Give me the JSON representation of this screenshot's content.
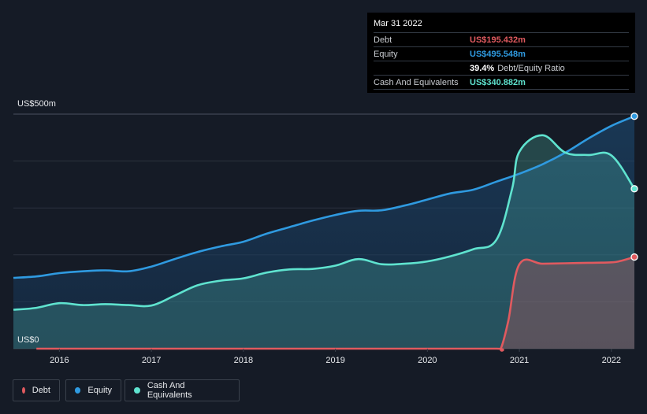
{
  "tooltip": {
    "date": "Mar 31 2022",
    "rows": [
      {
        "label": "Debt",
        "value": "US$195.432m",
        "color": "#e05a5f"
      },
      {
        "label": "Equity",
        "value": "US$495.548m",
        "color": "#2f9ae0"
      }
    ],
    "ratio_value": "39.4%",
    "ratio_label": "Debt/Equity Ratio",
    "cash": {
      "label": "Cash And Equivalents",
      "value": "US$340.882m",
      "color": "#5fe3cf"
    }
  },
  "legend": [
    {
      "label": "Debt",
      "color": "#e05a5f"
    },
    {
      "label": "Equity",
      "color": "#2f9ae0"
    },
    {
      "label": "Cash And Equivalents",
      "color": "#5fe3cf"
    }
  ],
  "chart_data": {
    "type": "area",
    "y_top_label": "US$500m",
    "y_bottom_label": "US$0",
    "ylim": [
      0,
      500
    ],
    "xlim": [
      2015.5,
      2022.25
    ],
    "x_ticks": [
      "2016",
      "2017",
      "2018",
      "2019",
      "2020",
      "2021",
      "2022"
    ],
    "grid": true,
    "series": [
      {
        "name": "Debt",
        "color": "#e05a5f",
        "points": [
          [
            2015.75,
            0
          ],
          [
            2016,
            0
          ],
          [
            2017,
            0
          ],
          [
            2018,
            0
          ],
          [
            2019,
            0
          ],
          [
            2020,
            0
          ],
          [
            2020.75,
            0
          ],
          [
            2020.8,
            1
          ],
          [
            2020.88,
            60
          ],
          [
            2021,
            180
          ],
          [
            2021.25,
            181
          ],
          [
            2021.5,
            182
          ],
          [
            2021.75,
            183
          ],
          [
            2022,
            184
          ],
          [
            2022.1,
            187
          ],
          [
            2022.25,
            195.4
          ]
        ]
      },
      {
        "name": "Equity",
        "color": "#2f9ae0",
        "points": [
          [
            2015.5,
            151
          ],
          [
            2015.75,
            154
          ],
          [
            2016,
            161
          ],
          [
            2016.25,
            165
          ],
          [
            2016.5,
            167
          ],
          [
            2016.75,
            165
          ],
          [
            2017,
            175
          ],
          [
            2017.25,
            191
          ],
          [
            2017.5,
            206
          ],
          [
            2017.75,
            218
          ],
          [
            2018,
            228
          ],
          [
            2018.25,
            245
          ],
          [
            2018.5,
            259
          ],
          [
            2018.75,
            273
          ],
          [
            2019,
            285
          ],
          [
            2019.25,
            294
          ],
          [
            2019.5,
            295
          ],
          [
            2019.75,
            305
          ],
          [
            2020,
            318
          ],
          [
            2020.25,
            331
          ],
          [
            2020.5,
            339
          ],
          [
            2020.75,
            356
          ],
          [
            2021,
            373
          ],
          [
            2021.25,
            393
          ],
          [
            2021.5,
            418
          ],
          [
            2021.75,
            448
          ],
          [
            2022,
            475
          ],
          [
            2022.25,
            495.5
          ]
        ]
      },
      {
        "name": "Cash And Equivalents",
        "color": "#5fe3cf",
        "points": [
          [
            2015.5,
            83
          ],
          [
            2015.75,
            87
          ],
          [
            2016,
            97
          ],
          [
            2016.25,
            93
          ],
          [
            2016.5,
            95
          ],
          [
            2016.75,
            93
          ],
          [
            2017,
            92
          ],
          [
            2017.25,
            113
          ],
          [
            2017.5,
            135
          ],
          [
            2017.75,
            145
          ],
          [
            2018,
            150
          ],
          [
            2018.25,
            162
          ],
          [
            2018.5,
            169
          ],
          [
            2018.75,
            170
          ],
          [
            2019,
            177
          ],
          [
            2019.25,
            191
          ],
          [
            2019.5,
            180
          ],
          [
            2019.75,
            181
          ],
          [
            2020,
            186
          ],
          [
            2020.25,
            197
          ],
          [
            2020.5,
            212
          ],
          [
            2020.75,
            232
          ],
          [
            2020.92,
            340
          ],
          [
            2021,
            420
          ],
          [
            2021.25,
            455
          ],
          [
            2021.5,
            418
          ],
          [
            2021.75,
            413
          ],
          [
            2022,
            412
          ],
          [
            2022.25,
            340.9
          ]
        ]
      }
    ]
  }
}
